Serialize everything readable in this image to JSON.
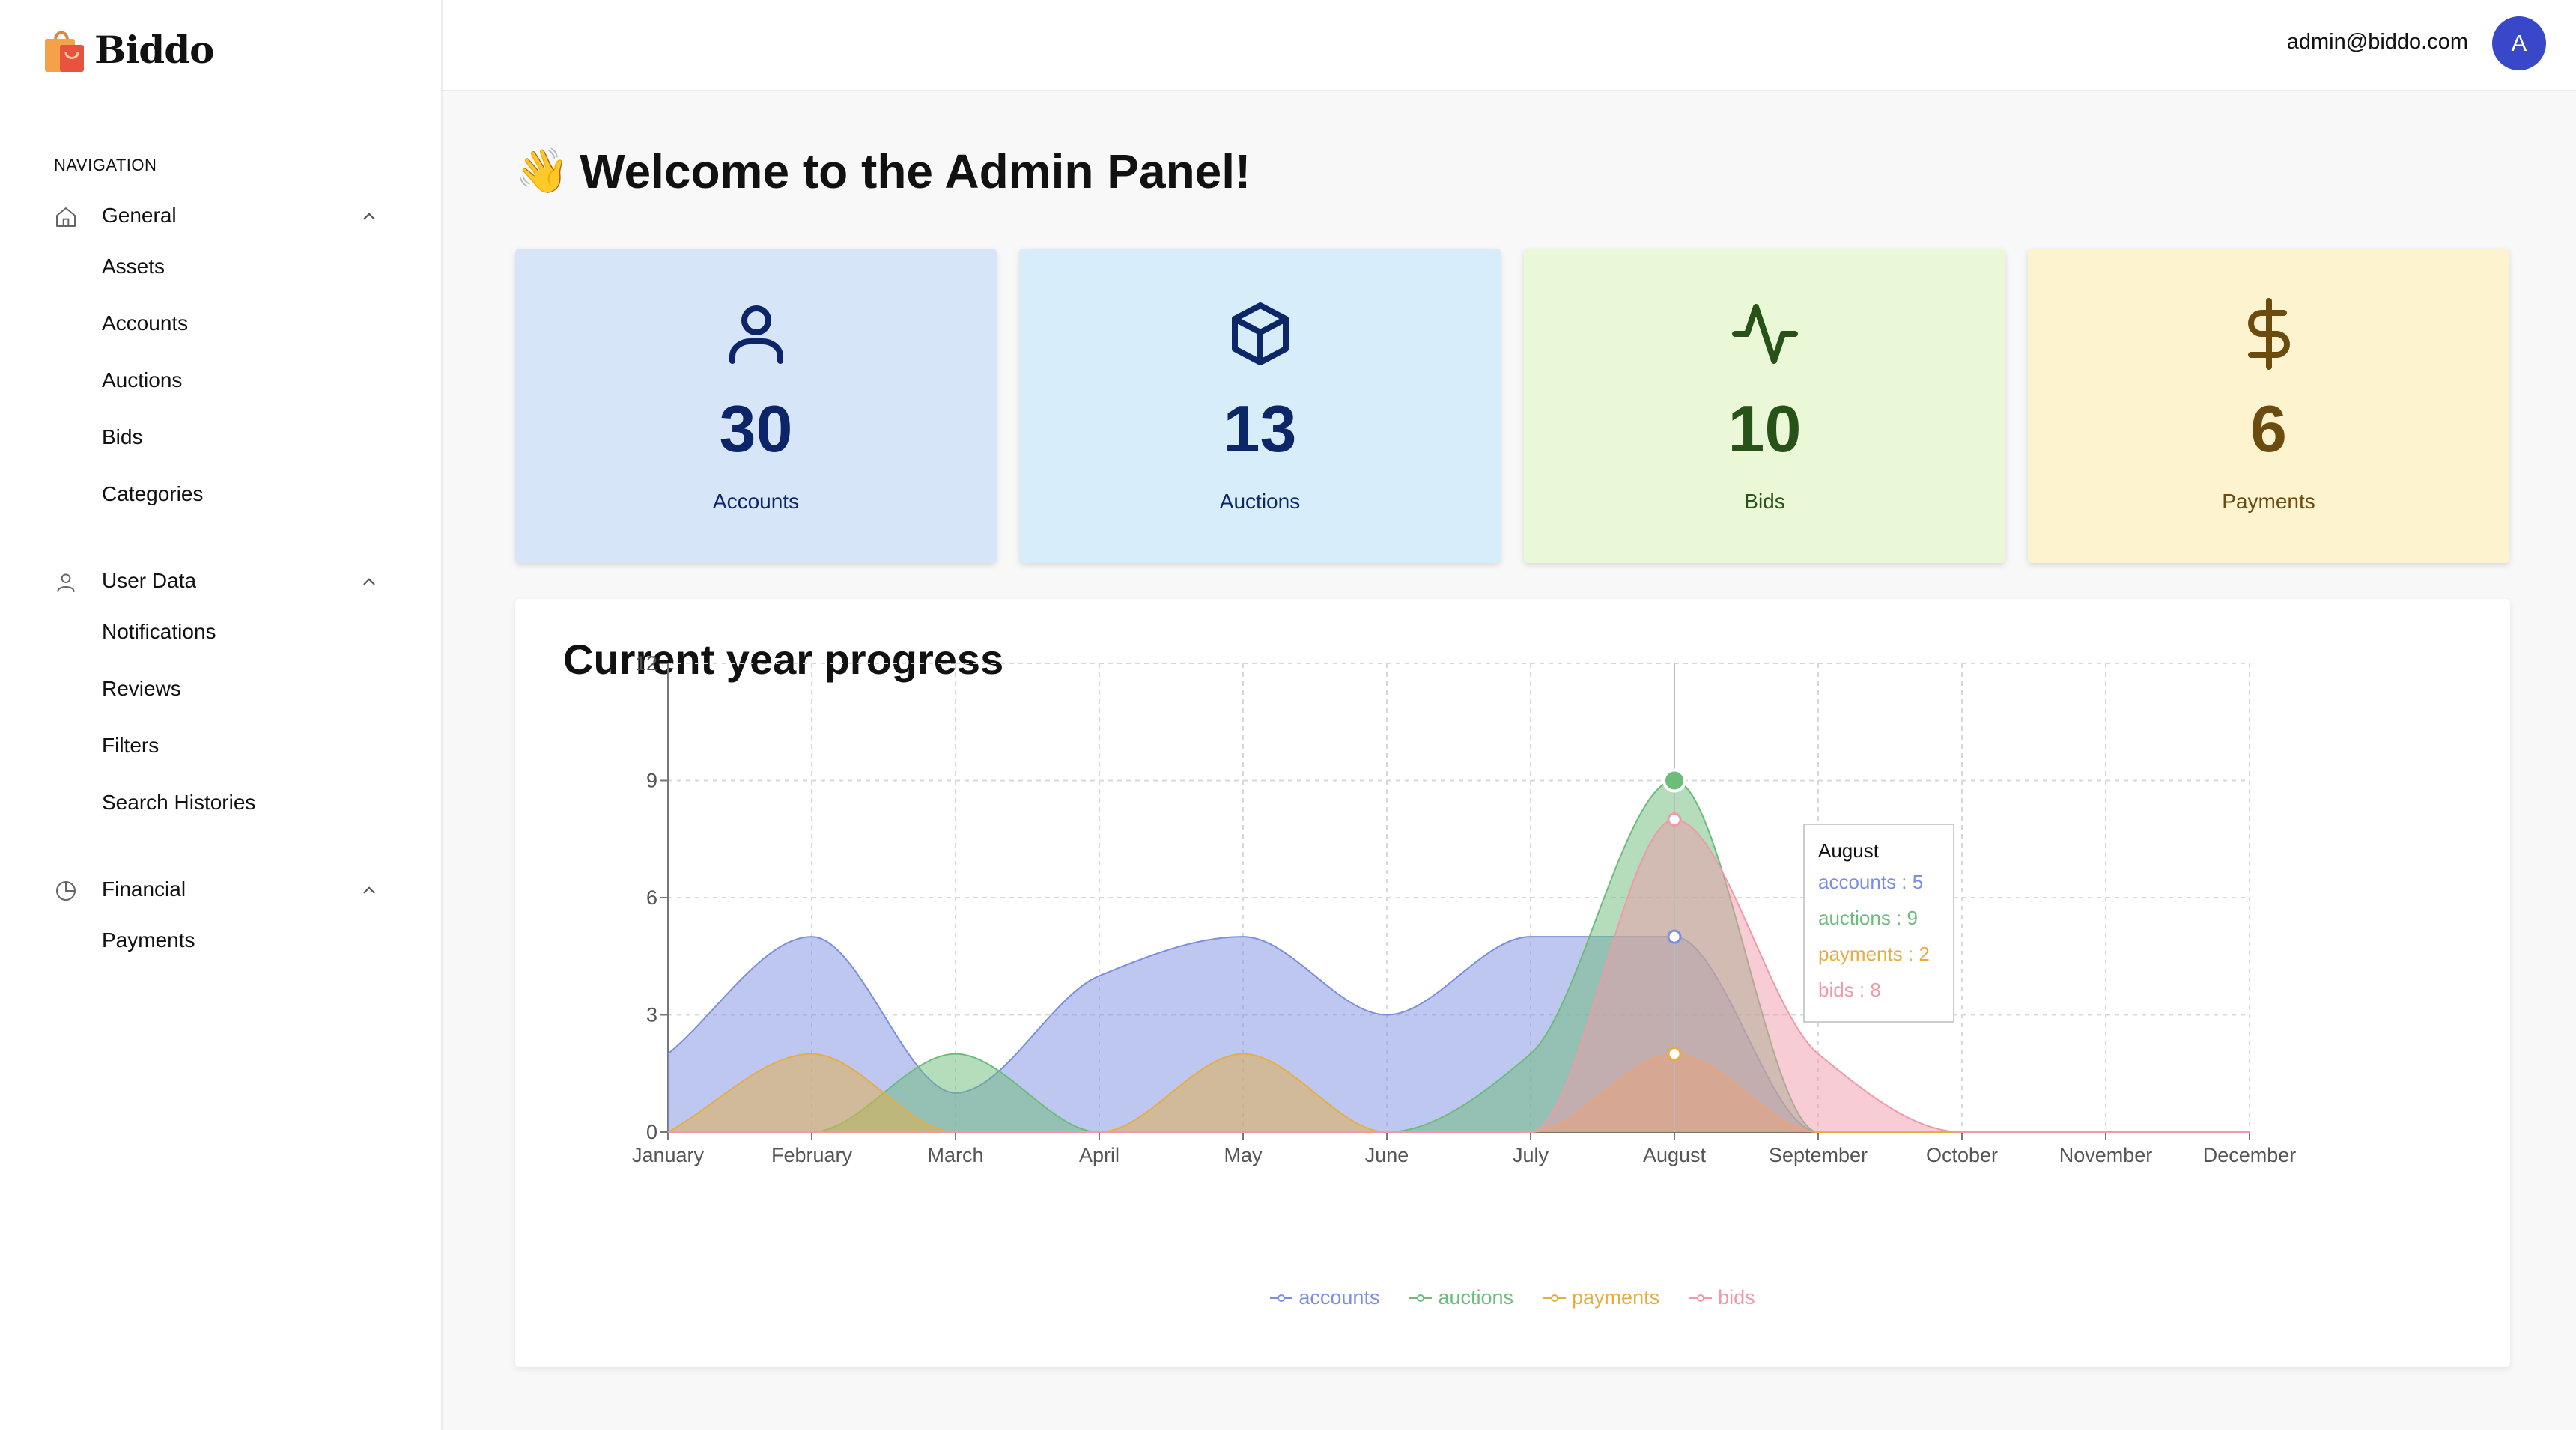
{
  "brand": {
    "name": "Biddo"
  },
  "header": {
    "email": "admin@biddo.com",
    "avatar_letter": "A"
  },
  "sidebar": {
    "heading": "NAVIGATION",
    "groups": [
      {
        "label": "General",
        "icon": "home-icon",
        "items": [
          "Assets",
          "Accounts",
          "Auctions",
          "Bids",
          "Categories"
        ]
      },
      {
        "label": "User Data",
        "icon": "user-icon",
        "items": [
          "Notifications",
          "Reviews",
          "Filters",
          "Search Histories"
        ]
      },
      {
        "label": "Financial",
        "icon": "pie-chart-icon",
        "items": [
          "Payments"
        ]
      }
    ]
  },
  "page": {
    "welcome_emoji": "👋",
    "welcome_text": "Welcome to the Admin Panel!"
  },
  "stats": [
    {
      "value": "30",
      "label": "Accounts",
      "icon": "user-icon",
      "bg": "#d6e6f8",
      "fg": "#0c2468"
    },
    {
      "value": "13",
      "label": "Auctions",
      "icon": "box-icon",
      "bg": "#d7eefa",
      "fg": "#0b2767"
    },
    {
      "value": "10",
      "label": "Bids",
      "icon": "activity-icon",
      "bg": "#ebf8d8",
      "fg": "#275319"
    },
    {
      "value": "6",
      "label": "Payments",
      "icon": "dollar-icon",
      "bg": "#fdf3cf",
      "fg": "#6b4c0e"
    }
  ],
  "chart": {
    "title": "Current year progress"
  },
  "chart_data": {
    "type": "area",
    "categories": [
      "January",
      "February",
      "March",
      "April",
      "May",
      "June",
      "July",
      "August",
      "September",
      "October",
      "November",
      "December"
    ],
    "ylim": [
      0,
      12
    ],
    "yticks": [
      0,
      3,
      6,
      9,
      12
    ],
    "grid": true,
    "legend_position": "bottom",
    "series": [
      {
        "name": "accounts",
        "color": "#7b8fe0",
        "values": [
          2,
          5,
          1,
          4,
          5,
          3,
          5,
          5,
          0,
          0,
          0,
          0
        ]
      },
      {
        "name": "auctions",
        "color": "#6cbc7a",
        "values": [
          0,
          0,
          2,
          0,
          0,
          0,
          2,
          9,
          0,
          0,
          0,
          0
        ]
      },
      {
        "name": "payments",
        "color": "#e6ad44",
        "values": [
          0,
          2,
          0,
          0,
          2,
          0,
          0,
          2,
          0,
          0,
          0,
          0
        ]
      },
      {
        "name": "bids",
        "color": "#f09aa9",
        "values": [
          0,
          0,
          0,
          0,
          0,
          0,
          0,
          8,
          2,
          0,
          0,
          0
        ]
      }
    ],
    "tooltip": {
      "category": "August",
      "lines": [
        "accounts : 5",
        "auctions : 9",
        "payments : 2",
        "bids : 8"
      ]
    }
  }
}
